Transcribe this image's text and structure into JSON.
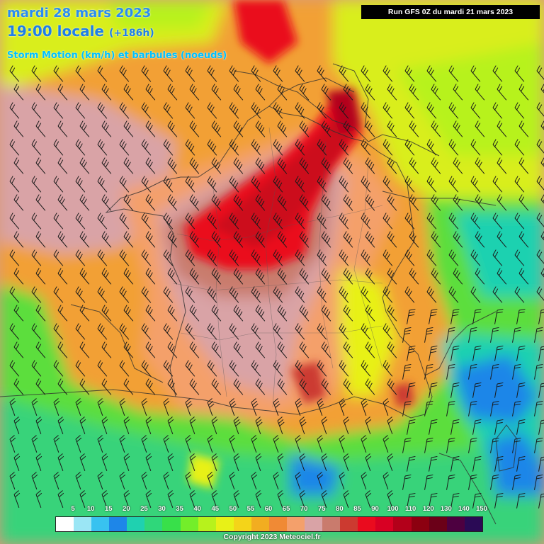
{
  "header": {
    "date": "mardi 28 mars 2023",
    "time": "19:00 locale",
    "lead": "(+186h)",
    "parameter": "Storm Motion (km/h) et barbules (noeuds)",
    "run": "Run GFS 0Z du mardi 21 mars 2023"
  },
  "footer": {
    "copyright": "Copyright 2023 Meteociel.fr"
  },
  "legend": {
    "labels": [
      "5",
      "10",
      "15",
      "20",
      "25",
      "30",
      "35",
      "40",
      "45",
      "50",
      "55",
      "60",
      "65",
      "70",
      "75",
      "80",
      "85",
      "90",
      "100",
      "110",
      "120",
      "130",
      "140",
      "150"
    ],
    "colors": [
      "#ffffff",
      "#9be6f5",
      "#38c2f0",
      "#1e86e8",
      "#1fd1b0",
      "#2fd77a",
      "#38e04a",
      "#73ee2a",
      "#b7f21c",
      "#e8f117",
      "#f4d419",
      "#f2ad20",
      "#f08a35",
      "#f4a06b",
      "#d9a3a6",
      "#c97b6d",
      "#cc3a30",
      "#ea0b1e",
      "#d80023",
      "#b3001a",
      "#8c0010",
      "#6b0018",
      "#4d0040",
      "#2a0a55"
    ]
  },
  "map": {
    "colors": {
      "sea": "#38d37a",
      "green": "#5bde3c",
      "yellow": "#d9ee1c",
      "orange": "#f2a034",
      "salmon": "#f4a06b",
      "mauve": "#d9a3a6",
      "brown": "#c97b6d",
      "red": "#ea0b1e",
      "darkred": "#b3001a",
      "blue": "#1e86e8",
      "cyan": "#38c2f0",
      "teal": "#1fd1b0",
      "barb": "#1a1a1a",
      "border": "#303030"
    },
    "icons": [
      "wind-barb-icon"
    ]
  }
}
